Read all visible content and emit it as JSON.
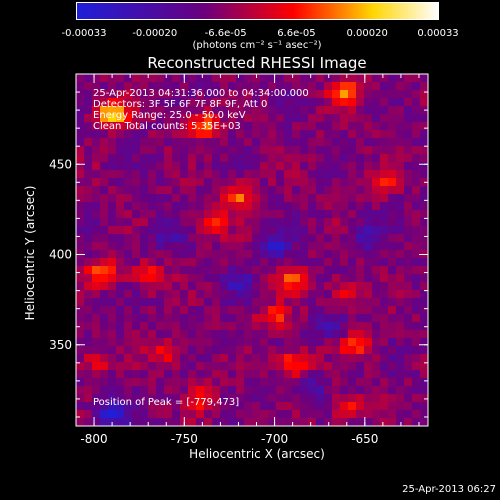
{
  "colorbar": {
    "ticks": [
      "-0.00033",
      "-0.00020",
      "-6.6e-05",
      "6.6e-05",
      "0.00020",
      "0.00033"
    ],
    "unit": "(photons cm⁻² s⁻¹ asec⁻²)",
    "colors": [
      "#1f1fd9",
      "#6a0080",
      "#ff0000",
      "#ffd700",
      "#ffffff"
    ]
  },
  "chart_data": {
    "type": "heatmap",
    "title": "Reconstructed RHESSI Image",
    "xlabel": "Heliocentric X (arcsec)",
    "ylabel": "Heliocentric Y (arcsec)",
    "xlim": [
      -810,
      -615
    ],
    "ylim": [
      305,
      500
    ],
    "xticks": [
      -800,
      -750,
      -700,
      -650
    ],
    "yticks": [
      350,
      400,
      450
    ],
    "xtick_labels": [
      "-800",
      "-750",
      "-700",
      "-650"
    ],
    "ytick_labels": [
      "350",
      "400",
      "450"
    ],
    "peak": [
      -779,
      473
    ],
    "bright_sources": [
      {
        "x": -790,
        "y": 478,
        "v": 1.0
      },
      {
        "x": -740,
        "y": 472,
        "v": 0.75
      },
      {
        "x": -660,
        "y": 490,
        "v": 0.7
      },
      {
        "x": -720,
        "y": 432,
        "v": 0.65
      },
      {
        "x": -735,
        "y": 418,
        "v": 0.55
      },
      {
        "x": -795,
        "y": 390,
        "v": 0.7
      },
      {
        "x": -770,
        "y": 388,
        "v": 0.6
      },
      {
        "x": -690,
        "y": 385,
        "v": 0.6
      },
      {
        "x": -700,
        "y": 365,
        "v": 0.55
      },
      {
        "x": -690,
        "y": 340,
        "v": 0.75
      },
      {
        "x": -740,
        "y": 320,
        "v": 0.5
      },
      {
        "x": -660,
        "y": 315,
        "v": 0.55
      },
      {
        "x": -640,
        "y": 440,
        "v": 0.45
      },
      {
        "x": -660,
        "y": 380,
        "v": 0.45
      },
      {
        "x": -800,
        "y": 340,
        "v": 0.4
      },
      {
        "x": -760,
        "y": 345,
        "v": 0.45
      },
      {
        "x": -655,
        "y": 350,
        "v": 0.6
      }
    ],
    "dark_sources": [
      {
        "x": -790,
        "y": 312,
        "v": -0.8
      },
      {
        "x": -700,
        "y": 405,
        "v": -0.6
      },
      {
        "x": -670,
        "y": 360,
        "v": -0.5
      },
      {
        "x": -760,
        "y": 410,
        "v": -0.4
      },
      {
        "x": -720,
        "y": 385,
        "v": -0.45
      },
      {
        "x": -650,
        "y": 410,
        "v": -0.4
      },
      {
        "x": -680,
        "y": 325,
        "v": -0.4
      }
    ]
  },
  "info": {
    "line1": "25-Apr-2013 04:31:36.000 to 04:34:00.000",
    "line2": "Detectors: 3F 5F 6F 7F 8F 9F, Att 0",
    "line3": "Energy Range: 25.0 - 50.0 keV",
    "line4": "Clean     Total counts: 5.35E+03",
    "peak": "Position of Peak = [-779,473]"
  },
  "footer": {
    "timestamp": "25-Apr-2013 06:27"
  }
}
